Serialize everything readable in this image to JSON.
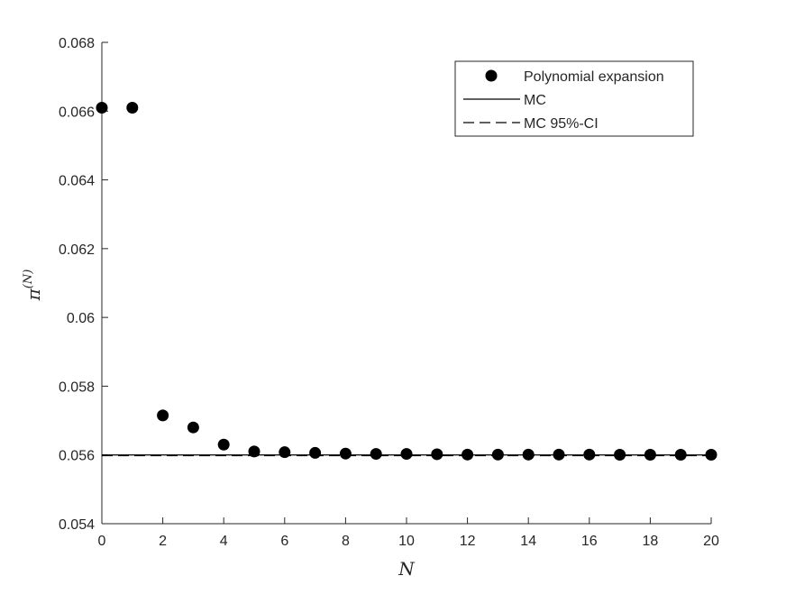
{
  "chart_data": {
    "type": "scatter",
    "title": "",
    "xlabel": "N",
    "ylabel_base": "π",
    "ylabel_sup": "(N)",
    "xlim": [
      0,
      20
    ],
    "ylim": [
      0.054,
      0.068
    ],
    "grid": false,
    "legend_position": "top-right",
    "x_ticks": [
      "0",
      "2",
      "4",
      "6",
      "8",
      "10",
      "12",
      "14",
      "16",
      "18",
      "20"
    ],
    "y_ticks": [
      "0.054",
      "0.056",
      "0.058",
      "0.06",
      "0.062",
      "0.064",
      "0.066",
      "0.068"
    ],
    "series": [
      {
        "name": "Polynomial expansion",
        "type": "scatter",
        "color": "#000000",
        "x": [
          0,
          1,
          2,
          3,
          4,
          5,
          6,
          7,
          8,
          9,
          10,
          11,
          12,
          13,
          14,
          15,
          16,
          17,
          18,
          19,
          20
        ],
        "y": [
          0.0661,
          0.0661,
          0.05715,
          0.0568,
          0.0563,
          0.0561,
          0.05608,
          0.05606,
          0.05604,
          0.05603,
          0.05603,
          0.05602,
          0.05601,
          0.05601,
          0.05601,
          0.05601,
          0.05601,
          0.056005,
          0.056005,
          0.056005,
          0.056005
        ]
      },
      {
        "name": "MC",
        "type": "line",
        "style": "solid",
        "color": "#000000",
        "x": [
          0,
          20
        ],
        "y": [
          0.056,
          0.056
        ]
      },
      {
        "name": "MC 95%-CI",
        "type": "line",
        "style": "dashed",
        "color": "#000000",
        "x": [
          0,
          20
        ],
        "y": [
          0.05598,
          0.05598
        ]
      }
    ]
  }
}
